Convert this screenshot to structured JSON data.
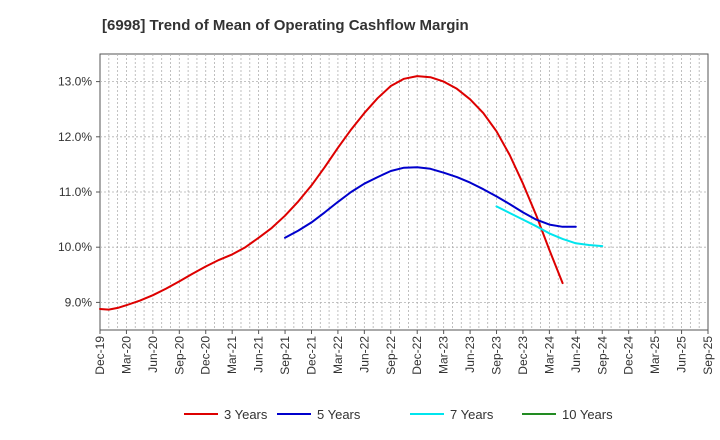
{
  "chart_data": {
    "type": "line",
    "title": "[6998]  Trend of Mean of Operating Cashflow Margin",
    "xlabel": "",
    "ylabel": "",
    "ylim": [
      8.5,
      13.5
    ],
    "yticks": [
      9.0,
      10.0,
      11.0,
      12.0,
      13.0
    ],
    "ytick_labels": [
      "9.0%",
      "10.0%",
      "11.0%",
      "12.0%",
      "13.0%"
    ],
    "x_labels": [
      "Dec-19",
      "Mar-20",
      "Jun-20",
      "Sep-20",
      "Dec-20",
      "Mar-21",
      "Jun-21",
      "Sep-21",
      "Dec-21",
      "Mar-22",
      "Jun-22",
      "Sep-22",
      "Dec-22",
      "Mar-23",
      "Jun-23",
      "Sep-23",
      "Dec-23",
      "Mar-24",
      "Jun-24",
      "Sep-24",
      "Dec-24",
      "Mar-25"
    ],
    "x_labels_extra": [
      "Jun-25"
    ],
    "x_end_label": "Sep-25",
    "grid": true,
    "legend_position": "bottom",
    "series": [
      {
        "name": "3 Years",
        "color": "#dd0000",
        "points": [
          [
            0,
            8.88
          ],
          [
            0.33,
            8.87
          ],
          [
            0.67,
            8.9
          ],
          [
            1,
            8.95
          ],
          [
            1.5,
            9.03
          ],
          [
            2,
            9.13
          ],
          [
            2.5,
            9.25
          ],
          [
            3,
            9.38
          ],
          [
            3.5,
            9.52
          ],
          [
            4,
            9.65
          ],
          [
            4.5,
            9.77
          ],
          [
            5,
            9.87
          ],
          [
            5.5,
            10
          ],
          [
            6,
            10.17
          ],
          [
            6.5,
            10.35
          ],
          [
            7,
            10.57
          ],
          [
            7.5,
            10.83
          ],
          [
            8,
            11.12
          ],
          [
            8.5,
            11.45
          ],
          [
            9,
            11.8
          ],
          [
            9.5,
            12.13
          ],
          [
            10,
            12.43
          ],
          [
            10.5,
            12.7
          ],
          [
            11,
            12.92
          ],
          [
            11.5,
            13.05
          ],
          [
            12,
            13.1
          ],
          [
            12.5,
            13.08
          ],
          [
            13,
            13
          ],
          [
            13.5,
            12.87
          ],
          [
            14,
            12.68
          ],
          [
            14.5,
            12.43
          ],
          [
            15,
            12.1
          ],
          [
            15.5,
            11.67
          ],
          [
            16,
            11.15
          ],
          [
            16.5,
            10.58
          ],
          [
            17,
            9.95
          ],
          [
            17.5,
            9.35
          ]
        ]
      },
      {
        "name": "5 Years",
        "color": "#0000cc",
        "points": [
          [
            7,
            10.17
          ],
          [
            7.5,
            10.3
          ],
          [
            8,
            10.45
          ],
          [
            8.5,
            10.63
          ],
          [
            9,
            10.82
          ],
          [
            9.5,
            11
          ],
          [
            10,
            11.15
          ],
          [
            10.5,
            11.27
          ],
          [
            11,
            11.38
          ],
          [
            11.5,
            11.44
          ],
          [
            12,
            11.45
          ],
          [
            12.5,
            11.42
          ],
          [
            13,
            11.35
          ],
          [
            13.5,
            11.27
          ],
          [
            14,
            11.17
          ],
          [
            14.5,
            11.05
          ],
          [
            15,
            10.92
          ],
          [
            15.5,
            10.78
          ],
          [
            16,
            10.63
          ],
          [
            16.5,
            10.5
          ],
          [
            17,
            10.41
          ],
          [
            17.5,
            10.37
          ],
          [
            18,
            10.37
          ]
        ]
      },
      {
        "name": "7 Years",
        "color": "#00e5ee",
        "points": [
          [
            15,
            10.74
          ],
          [
            15.5,
            10.62
          ],
          [
            16,
            10.5
          ],
          [
            16.5,
            10.38
          ],
          [
            17,
            10.25
          ],
          [
            17.5,
            10.15
          ],
          [
            18,
            10.07
          ],
          [
            18.5,
            10.04
          ],
          [
            19,
            10.02
          ]
        ]
      },
      {
        "name": "10 Years",
        "color": "#228b22",
        "points": []
      }
    ]
  }
}
